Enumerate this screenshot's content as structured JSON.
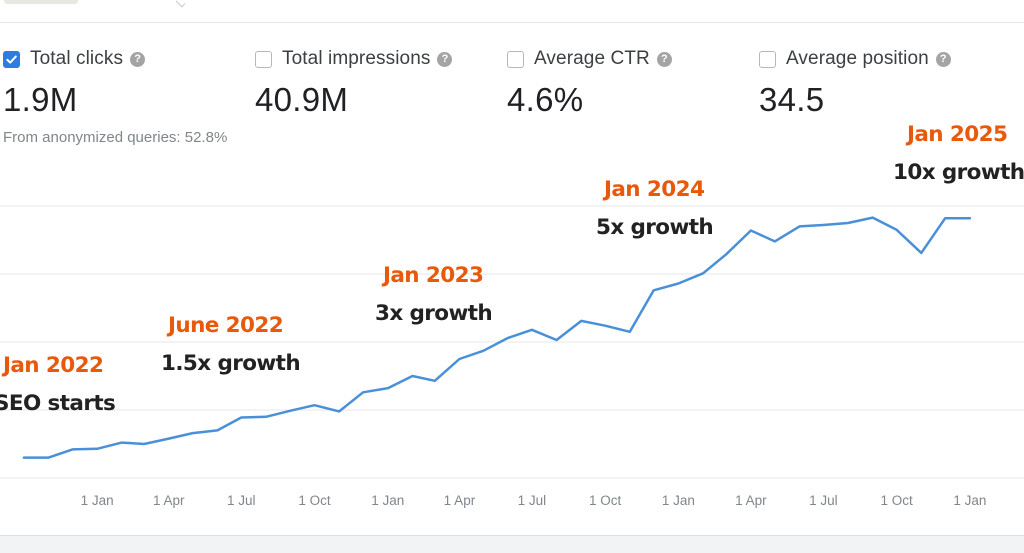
{
  "metrics": [
    {
      "label": "Total clicks",
      "value": "1.9M",
      "checked": true,
      "help_icon": "help-circle-icon"
    },
    {
      "label": "Total impressions",
      "value": "40.9M",
      "checked": false,
      "help_icon": "help-circle-icon"
    },
    {
      "label": "Average CTR",
      "value": "4.6%",
      "checked": false,
      "help_icon": "help-circle-icon"
    },
    {
      "label": "Average position",
      "value": "34.5",
      "checked": false,
      "help_icon": "help-circle-icon"
    }
  ],
  "anonymized_note": "From anonymized queries: 52.8%",
  "help_glyph": "?",
  "colors": {
    "accent_checkbox": "#2b7de1",
    "line": "#4a90d9",
    "annotation_date": "#e8590c",
    "annotation_text": "#222222"
  },
  "annotations": [
    {
      "date": "Jan 2022",
      "text": "SEO starts"
    },
    {
      "date": "June 2022",
      "text": "1.5x growth"
    },
    {
      "date": "Jan 2023",
      "text": "3x growth"
    },
    {
      "date": "Jan 2024",
      "text": "5x growth"
    },
    {
      "date": "Jan 2025",
      "text": "10x growth"
    }
  ],
  "chart_data": {
    "type": "line",
    "title": "",
    "xlabel": "",
    "ylabel": "",
    "y_axis_labels_shown": false,
    "grid": "horizontal",
    "x_tick_labels": [
      "1 Jan",
      "1 Apr",
      "1 Jul",
      "1 Oct",
      "1 Jan",
      "1 Apr",
      "1 Jul",
      "1 Oct",
      "1 Jan",
      "1 Apr",
      "1 Jul",
      "1 Oct",
      "1 Jan"
    ],
    "x_ticks": [
      "2022-01-01",
      "2022-04-01",
      "2022-07-01",
      "2022-10-01",
      "2023-01-01",
      "2023-04-01",
      "2023-07-01",
      "2023-10-01",
      "2024-01-01",
      "2024-04-01",
      "2024-07-01",
      "2024-10-01",
      "2025-01-01"
    ],
    "x_range": [
      "2021-09-01",
      "2025-03-10"
    ],
    "gridlines_y": [
      0,
      1,
      2,
      3,
      4
    ],
    "ylim": [
      0,
      4
    ],
    "series": [
      {
        "name": "Total clicks",
        "color": "#4a90d9",
        "x": [
          "2021-10-01",
          "2021-11-01",
          "2021-12-01",
          "2022-01-01",
          "2022-02-01",
          "2022-03-01",
          "2022-04-01",
          "2022-05-01",
          "2022-06-01",
          "2022-07-01",
          "2022-08-01",
          "2022-09-01",
          "2022-10-01",
          "2022-11-01",
          "2022-12-01",
          "2023-01-01",
          "2023-02-01",
          "2023-03-01",
          "2023-04-01",
          "2023-05-01",
          "2023-06-01",
          "2023-07-01",
          "2023-08-01",
          "2023-09-01",
          "2023-10-01",
          "2023-11-01",
          "2023-12-01",
          "2024-01-01",
          "2024-02-01",
          "2024-03-01",
          "2024-04-01",
          "2024-05-01",
          "2024-06-01",
          "2024-07-01",
          "2024-08-01",
          "2024-09-01",
          "2024-10-01",
          "2024-11-01",
          "2024-12-01",
          "2025-01-01"
        ],
        "y": [
          0.3,
          0.3,
          0.42,
          0.43,
          0.52,
          0.5,
          0.58,
          0.66,
          0.7,
          0.89,
          0.9,
          0.99,
          1.07,
          0.98,
          1.26,
          1.32,
          1.5,
          1.43,
          1.75,
          1.87,
          2.06,
          2.18,
          2.03,
          2.31,
          2.24,
          2.15,
          2.76,
          2.86,
          3.01,
          3.29,
          3.64,
          3.48,
          3.7,
          3.72,
          3.75,
          3.83,
          3.65,
          3.31,
          3.82,
          3.82
        ]
      }
    ]
  }
}
